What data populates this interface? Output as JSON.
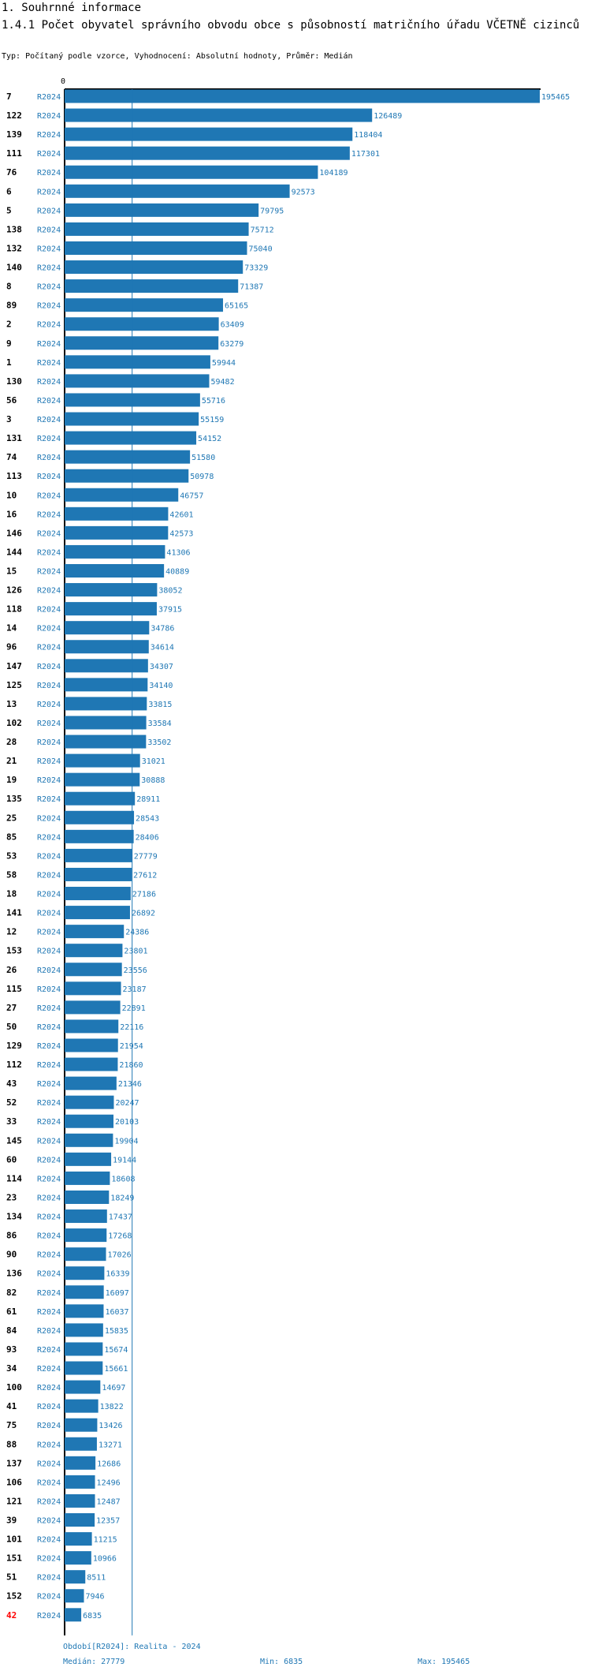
{
  "header": {
    "section": "1. Souhrnné informace",
    "title": "1.4.1 Počet obyvatel správního obvodu obce s působností matričního úřadu VČETNĚ cizinců",
    "subtitle": "Typ: Počítaný podle vzorce, Vyhodnocení: Absolutní hodnoty, Průměr: Medián"
  },
  "colors": {
    "bar": "#1f77b4",
    "label": "#1f77b4",
    "highlight": "#ff0000",
    "axis": "#000000"
  },
  "chart_data": {
    "type": "bar",
    "orientation": "horizontal",
    "axis_tick_label": "0",
    "xlim": [
      0,
      195465
    ],
    "median_line": 27779,
    "series_label": "R2024",
    "highlight_category": "42",
    "categories": [
      "7",
      "122",
      "139",
      "111",
      "76",
      "6",
      "5",
      "138",
      "132",
      "140",
      "8",
      "89",
      "2",
      "9",
      "1",
      "130",
      "56",
      "3",
      "131",
      "74",
      "113",
      "10",
      "16",
      "146",
      "144",
      "15",
      "126",
      "118",
      "14",
      "96",
      "147",
      "125",
      "13",
      "102",
      "28",
      "21",
      "19",
      "135",
      "25",
      "85",
      "53",
      "58",
      "18",
      "141",
      "12",
      "153",
      "26",
      "115",
      "27",
      "50",
      "129",
      "112",
      "43",
      "52",
      "33",
      "145",
      "60",
      "114",
      "23",
      "134",
      "86",
      "90",
      "136",
      "82",
      "61",
      "84",
      "93",
      "34",
      "100",
      "41",
      "75",
      "88",
      "137",
      "106",
      "121",
      "39",
      "101",
      "151",
      "51",
      "152",
      "42"
    ],
    "values": [
      195465,
      126489,
      118404,
      117301,
      104189,
      92573,
      79795,
      75712,
      75040,
      73329,
      71387,
      65165,
      63409,
      63279,
      59944,
      59482,
      55716,
      55159,
      54152,
      51580,
      50978,
      46757,
      42601,
      42573,
      41306,
      40889,
      38052,
      37915,
      34786,
      34614,
      34307,
      34140,
      33815,
      33584,
      33502,
      31021,
      30888,
      28911,
      28543,
      28406,
      27779,
      27612,
      27186,
      26892,
      24386,
      23801,
      23556,
      23187,
      22891,
      22116,
      21954,
      21860,
      21346,
      20247,
      20103,
      19904,
      19144,
      18608,
      18249,
      17437,
      17268,
      17026,
      16339,
      16097,
      16037,
      15835,
      15674,
      15661,
      14697,
      13822,
      13426,
      13271,
      12686,
      12496,
      12487,
      12357,
      11215,
      10966,
      8511,
      7946,
      6835
    ]
  },
  "footer": {
    "period": "Období[R2024]: Realita - 2024",
    "median": "Medián: 27779",
    "min": "Min: 6835",
    "max": "Max: 195465"
  }
}
